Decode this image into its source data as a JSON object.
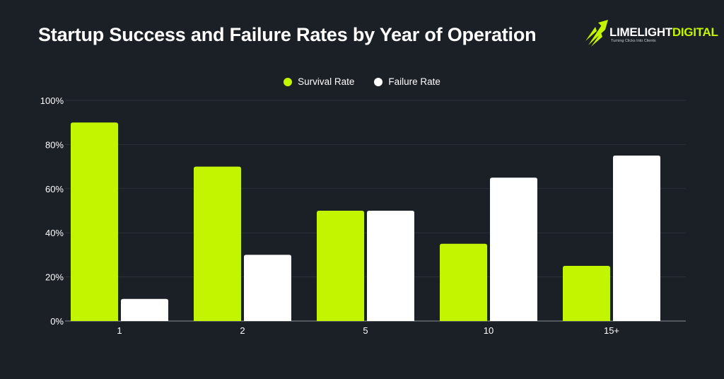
{
  "title": "Startup Success and Failure Rates by Year of Operation",
  "logo": {
    "word1": "LIMELIGHT",
    "word2": "DIGITAL",
    "tagline": "Turning Clicks Into Clients"
  },
  "colors": {
    "background": "#1b1f26",
    "survival": "#c3f400",
    "failure": "#ffffff",
    "grid": "#2c313a"
  },
  "chart_data": {
    "type": "bar",
    "title": "Startup Success and Failure Rates by Year of Operation",
    "xlabel": "",
    "ylabel": "",
    "categories": [
      "1",
      "2",
      "5",
      "10",
      "15+"
    ],
    "series": [
      {
        "name": "Survival Rate",
        "values": [
          90,
          70,
          50,
          35,
          25
        ]
      },
      {
        "name": "Failure Rate",
        "values": [
          10,
          30,
          50,
          65,
          75
        ]
      }
    ],
    "ylim": [
      0,
      100
    ],
    "yticks": [
      "0%",
      "20%",
      "40%",
      "60%",
      "80%",
      "100%"
    ],
    "ytick_values": [
      0,
      20,
      40,
      60,
      80,
      100
    ],
    "grid": true,
    "legend_position": "top-center"
  }
}
